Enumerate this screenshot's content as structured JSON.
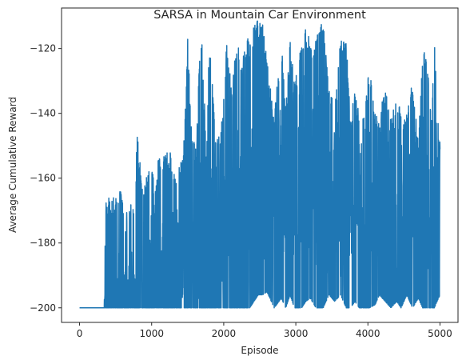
{
  "chart_data": {
    "type": "line",
    "title": "SARSA in Mountain Car Environment",
    "xlabel": "Episode",
    "ylabel": "Average Cumulative Reward",
    "xlim": [
      -250,
      5250
    ],
    "ylim": [
      -204.5,
      -107.5
    ],
    "x_ticks": [
      0,
      1000,
      2000,
      3000,
      4000,
      5000
    ],
    "x_tick_labels": [
      "0",
      "1000",
      "2000",
      "3000",
      "4000",
      "5000"
    ],
    "y_ticks": [
      -200,
      -180,
      -160,
      -140,
      -120
    ],
    "y_tick_labels": [
      "−200",
      "−180",
      "−160",
      "−140",
      "−120"
    ],
    "grid": false,
    "legend": "none",
    "series_color": "#1f77b4",
    "envelope": {
      "x": [
        0,
        340,
        360,
        380,
        420,
        500,
        560,
        640,
        680,
        760,
        800,
        880,
        1000,
        1040,
        1100,
        1200,
        1260,
        1340,
        1440,
        1500,
        1560,
        1620,
        1660,
        1700,
        1760,
        1800,
        1900,
        1980,
        2040,
        2100,
        2160,
        2200,
        2260,
        2300,
        2360,
        2420,
        2480,
        2540,
        2600,
        2700,
        2800,
        2860,
        2920,
        2980,
        3020,
        3080,
        3140,
        3200,
        3280,
        3320,
        3380,
        3460,
        3540,
        3620,
        3700,
        3760,
        3820,
        3880,
        3960,
        4020,
        4100,
        4160,
        4240,
        4320,
        4400,
        4460,
        4540,
        4620,
        4700,
        4760,
        4820,
        4880,
        4920,
        4960,
        5000
      ],
      "high": [
        -200,
        -200,
        -166,
        -166,
        -166,
        -166,
        -160,
        -172,
        -167,
        -170,
        -146,
        -165,
        -152,
        -165,
        -152,
        -152,
        -152,
        -160,
        -152,
        -117,
        -148,
        -150,
        -124,
        -117,
        -152,
        -117,
        -148,
        -142,
        -117,
        -131,
        -122,
        -117,
        -125,
        -117,
        -117,
        -113,
        -111,
        -110,
        -123,
        -140,
        -117,
        -136,
        -117,
        -130,
        -127,
        -117,
        -113,
        -117,
        -117,
        -112,
        -112,
        -130,
        -138,
        -117,
        -117,
        -143,
        -130,
        -142,
        -138,
        -125,
        -140,
        -142,
        -130,
        -142,
        -132,
        -140,
        -138,
        -129,
        -149,
        -118,
        -123,
        -143,
        -114,
        -140,
        -148
      ],
      "low": [
        -200,
        -200,
        -200,
        -200,
        -200,
        -200,
        -200,
        -200,
        -200,
        -200,
        -200,
        -200,
        -200,
        -200,
        -200,
        -200,
        -200,
        -200,
        -200,
        -200,
        -200,
        -200,
        -200,
        -200,
        -200,
        -200,
        -200,
        -200,
        -200,
        -200,
        -200,
        -200,
        -200,
        -200,
        -200,
        -198,
        -196,
        -196,
        -195,
        -200,
        -197,
        -200,
        -196,
        -200,
        -200,
        -200,
        -198,
        -197,
        -200,
        -200,
        -200,
        -196,
        -198,
        -196,
        -200,
        -200,
        -198,
        -200,
        -200,
        -200,
        -199,
        -196,
        -198,
        -200,
        -198,
        -200,
        -196,
        -200,
        -197,
        -200,
        -200,
        -200,
        -200,
        -198,
        -196
      ],
      "mean": [
        -200,
        -200,
        -199,
        -198,
        -198,
        -197,
        -196,
        -195,
        -194,
        -193,
        -191,
        -190,
        -188,
        -187,
        -186,
        -185,
        -184,
        -183,
        -182,
        -180,
        -180,
        -178,
        -177,
        -177,
        -176,
        -175,
        -174,
        -173,
        -172,
        -171,
        -170,
        -168,
        -168,
        -166,
        -164,
        -160,
        -158,
        -157,
        -158,
        -160,
        -157,
        -158,
        -156,
        -160,
        -160,
        -158,
        -157,
        -157,
        -160,
        -162,
        -163,
        -165,
        -166,
        -165,
        -165,
        -166,
        -167,
        -167,
        -167,
        -166,
        -166,
        -166,
        -165,
        -165,
        -166,
        -166,
        -167,
        -167,
        -167,
        -166,
        -166,
        -167,
        -166,
        -165,
        -165
      ]
    }
  }
}
